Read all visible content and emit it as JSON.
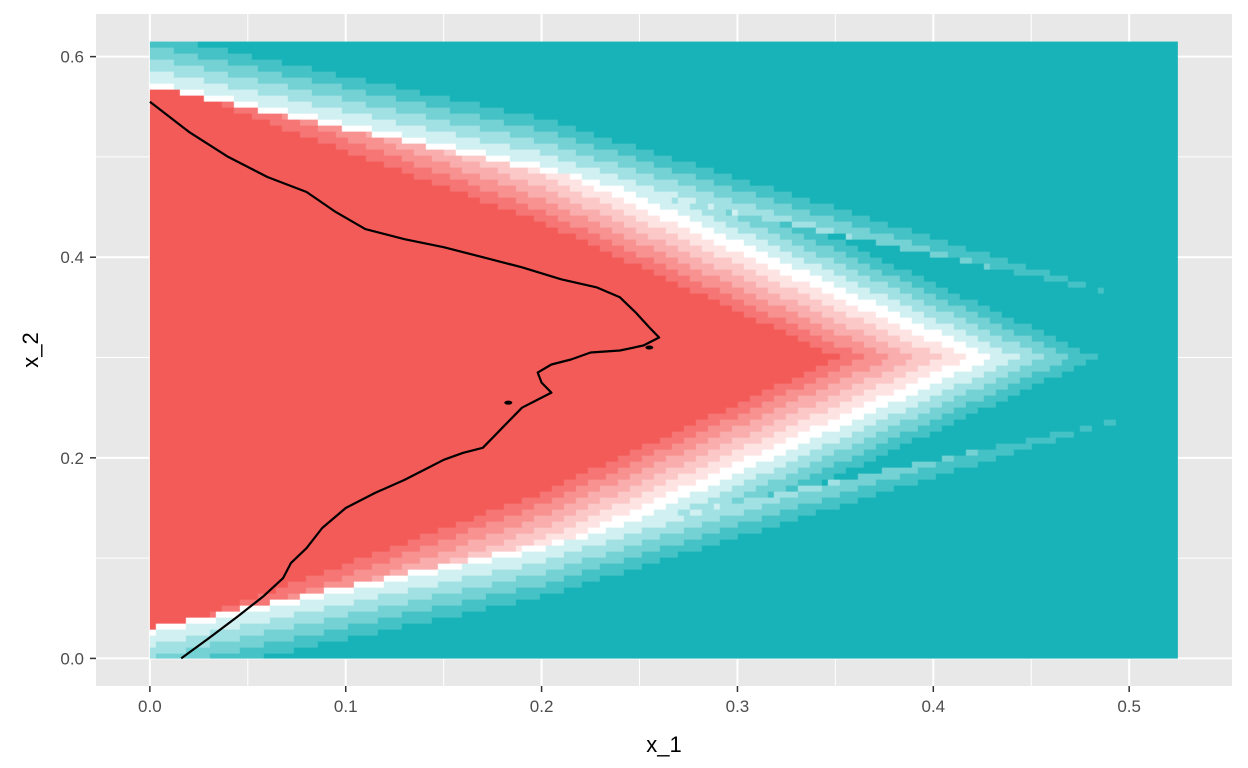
{
  "chart_data": {
    "type": "heatmap",
    "title": "",
    "xlabel": "x_1",
    "ylabel": "x_2",
    "xlim": [
      -0.0275,
      0.5525
    ],
    "ylim": [
      -0.0275,
      0.6425
    ],
    "x_ticks": [
      0.0,
      0.1,
      0.2,
      0.3,
      0.4,
      0.5
    ],
    "y_ticks": [
      0.0,
      0.2,
      0.4,
      0.6
    ],
    "x_tick_labels": [
      "0.0",
      "0.1",
      "0.2",
      "0.3",
      "0.4",
      "0.5"
    ],
    "y_tick_labels": [
      "0.0",
      "0.2",
      "0.4",
      "0.6"
    ],
    "grid": true,
    "legend": "none",
    "data_extent": {
      "x": [
        0.0,
        0.525
      ],
      "y": [
        0.0,
        0.615
      ]
    },
    "colors": {
      "panel_bg": "#e8e8e8",
      "grid": "#ffffff",
      "low": "#f35b58",
      "mid": "#ffffff",
      "high": "#17b3b8",
      "contour": "#000000"
    },
    "contour_line": [
      [
        0.016,
        0.0
      ],
      [
        0.03,
        0.02
      ],
      [
        0.045,
        0.042
      ],
      [
        0.058,
        0.062
      ],
      [
        0.068,
        0.08
      ],
      [
        0.072,
        0.095
      ],
      [
        0.08,
        0.11
      ],
      [
        0.088,
        0.13
      ],
      [
        0.1,
        0.15
      ],
      [
        0.115,
        0.165
      ],
      [
        0.13,
        0.178
      ],
      [
        0.14,
        0.188
      ],
      [
        0.15,
        0.198
      ],
      [
        0.16,
        0.205
      ],
      [
        0.17,
        0.21
      ],
      [
        0.175,
        0.22
      ],
      [
        0.18,
        0.23
      ],
      [
        0.185,
        0.24
      ],
      [
        0.19,
        0.25
      ],
      [
        0.198,
        0.258
      ],
      [
        0.205,
        0.265
      ],
      [
        0.2,
        0.275
      ],
      [
        0.198,
        0.285
      ],
      [
        0.205,
        0.293
      ],
      [
        0.215,
        0.298
      ],
      [
        0.225,
        0.305
      ],
      [
        0.24,
        0.307
      ],
      [
        0.252,
        0.312
      ],
      [
        0.26,
        0.32
      ],
      [
        0.255,
        0.33
      ],
      [
        0.248,
        0.345
      ],
      [
        0.24,
        0.36
      ],
      [
        0.228,
        0.37
      ],
      [
        0.21,
        0.378
      ],
      [
        0.19,
        0.39
      ],
      [
        0.17,
        0.4
      ],
      [
        0.15,
        0.41
      ],
      [
        0.13,
        0.418
      ],
      [
        0.11,
        0.428
      ],
      [
        0.095,
        0.445
      ],
      [
        0.08,
        0.465
      ],
      [
        0.06,
        0.48
      ],
      [
        0.04,
        0.5
      ],
      [
        0.02,
        0.525
      ],
      [
        0.0,
        0.555
      ]
    ],
    "contour_blob": [
      [
        0.183,
        0.255
      ],
      [
        0.255,
        0.31
      ]
    ]
  }
}
